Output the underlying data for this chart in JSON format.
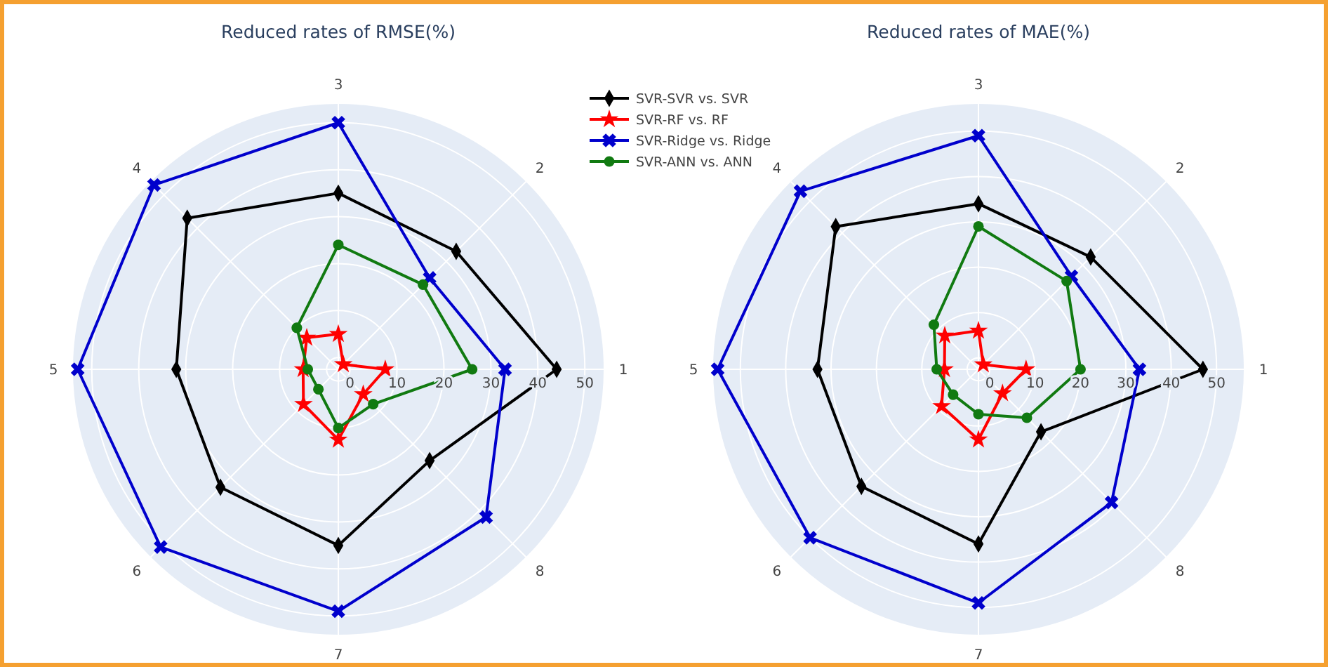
{
  "chart_data": [
    {
      "type": "radar",
      "title": "Reduced rates of RMSE(%)",
      "categories": [
        "3",
        "2",
        "1",
        "8",
        "7",
        "6",
        "5",
        "4"
      ],
      "ylim": [
        -2.5,
        54
      ],
      "yticks": [
        0,
        10,
        20,
        30,
        40,
        50
      ],
      "grid": true,
      "legend": "top right",
      "series": [
        {
          "name": "SVR-SVR vs. SVR",
          "color": "#000000",
          "marker": "diamond",
          "values": [
            35,
            33,
            44,
            25,
            35,
            33,
            32,
            43
          ]
        },
        {
          "name": "SVR-RF vs. RF",
          "color": "#ff0000",
          "marker": "star",
          "values": [
            5,
            -1,
            7.5,
            5,
            12.5,
            8,
            5,
            7
          ]
        },
        {
          "name": "SVR-Ridge vs. Ridge",
          "color": "#0000cc",
          "marker": "cross",
          "values": [
            50,
            25,
            33,
            42,
            49,
            51,
            53,
            53
          ]
        },
        {
          "name": "SVR-ANN vs. ANN",
          "color": "#117a11",
          "marker": "circle",
          "values": [
            24,
            23,
            26,
            8,
            10,
            3.5,
            4,
            10
          ]
        }
      ]
    },
    {
      "type": "radar",
      "title": "Reduced rates of MAE(%)",
      "categories": [
        "3",
        "2",
        "1",
        "8",
        "7",
        "6",
        "5",
        "4"
      ],
      "ylim": [
        -2.5,
        56
      ],
      "yticks": [
        0,
        10,
        20,
        30,
        40,
        50
      ],
      "grid": true,
      "series": [
        {
          "color": "#000000",
          "marker": "diamond",
          "values": [
            34,
            32.5,
            47,
            17,
            36,
            34,
            33,
            42
          ]
        },
        {
          "color": "#ff0000",
          "marker": "star",
          "values": [
            6,
            -1,
            8,
            5,
            13,
            9,
            5,
            8
          ]
        },
        {
          "color": "#0000cc",
          "marker": "cross",
          "values": [
            49,
            26.5,
            33,
            39,
            49,
            50,
            55,
            53
          ]
        },
        {
          "color": "#117a11",
          "marker": "circle",
          "values": [
            29,
            25,
            20,
            12.6,
            7.4,
            5.4,
            6.7,
            11.4
          ]
        }
      ]
    }
  ]
}
